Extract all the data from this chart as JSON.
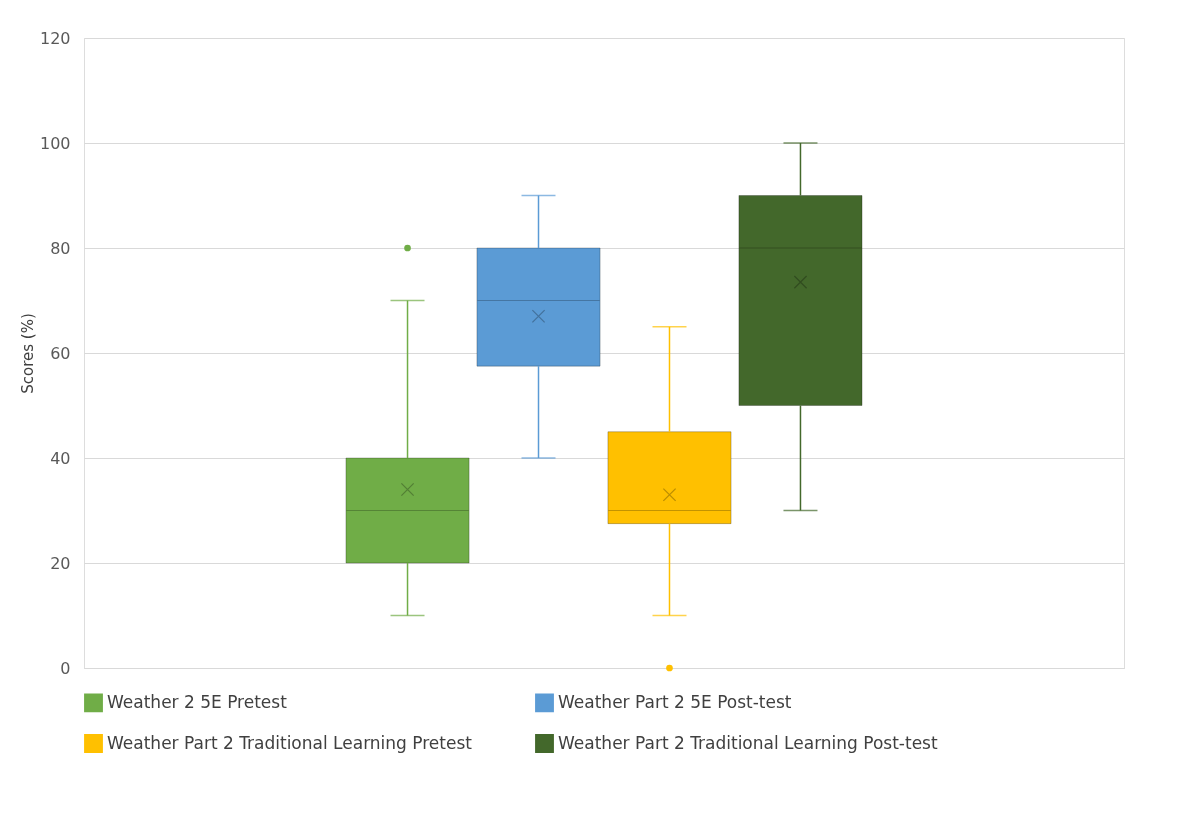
{
  "chart_data": {
    "type": "box",
    "ylabel": "Scores (%)",
    "categories": [
      null
    ],
    "ylim": [
      0,
      120
    ],
    "yticks": [
      0,
      20,
      40,
      60,
      80,
      100,
      120
    ],
    "grid": "y",
    "legend": "bottom",
    "tick_labels": "y",
    "series": [
      {
        "name": "Weather 2 5E Pretest",
        "color": "#70ad47",
        "boxes": [
          {
            "low": 10,
            "q1": 20,
            "median": 30,
            "q3": 40,
            "high": 70,
            "mean": 34,
            "outliers": [
              80
            ]
          }
        ]
      },
      {
        "name": "Weather Part 2 5E Post-test",
        "color": "#5b9bd5",
        "boxes": [
          {
            "low": 40,
            "q1": 57.5,
            "median": 70,
            "q3": 80,
            "high": 90,
            "mean": 67
          }
        ]
      },
      {
        "name": "Weather Part 2 Traditional Learning Pretest",
        "color": "#ffc000",
        "boxes": [
          {
            "low": 10,
            "q1": 27.5,
            "median": 30,
            "q3": 45,
            "high": 65,
            "mean": 33,
            "outliers": [
              0
            ]
          }
        ]
      },
      {
        "name": "Weather Part 2 Traditional Learning Post-test",
        "color": "#43682b",
        "boxes": [
          {
            "low": 30,
            "q1": 50,
            "median": 80,
            "q3": 90,
            "high": 100,
            "mean": 73.5
          }
        ]
      }
    ]
  }
}
